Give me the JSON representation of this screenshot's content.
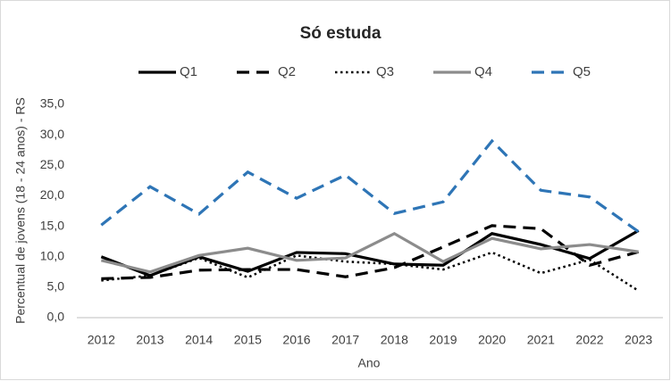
{
  "chart_data": {
    "type": "line",
    "title": "Só estuda",
    "x_label": "Ano",
    "y_label": "Percentual de jovens (18 - 24 anos) - RS",
    "categories": [
      "2012",
      "2013",
      "2014",
      "2015",
      "2016",
      "2017",
      "2018",
      "2019",
      "2020",
      "2021",
      "2022",
      "2023"
    ],
    "series": [
      {
        "name": "Q1",
        "color": "#000000",
        "style": "solid",
        "values": [
          10.0,
          6.9,
          10.0,
          7.6,
          10.7,
          10.5,
          8.8,
          8.6,
          13.8,
          12.0,
          9.7,
          14.3
        ]
      },
      {
        "name": "Q2",
        "color": "#000000",
        "style": "dash",
        "values": [
          6.4,
          6.6,
          7.8,
          7.9,
          7.9,
          6.7,
          8.2,
          11.6,
          15.1,
          14.6,
          8.6,
          10.8
        ]
      },
      {
        "name": "Q3",
        "color": "#000000",
        "style": "dot",
        "values": [
          6.1,
          6.9,
          9.8,
          6.6,
          10.2,
          9.2,
          8.8,
          7.9,
          10.7,
          7.3,
          9.5,
          4.4
        ]
      },
      {
        "name": "Q4",
        "color": "#8c8c8c",
        "style": "solid",
        "values": [
          9.4,
          7.5,
          10.2,
          11.4,
          9.4,
          9.8,
          13.8,
          9.2,
          13.0,
          11.3,
          12.0,
          10.8
        ]
      },
      {
        "name": "Q5",
        "color": "#2e75b6",
        "style": "dash",
        "values": [
          15.2,
          21.5,
          17.0,
          23.9,
          19.6,
          23.4,
          17.1,
          19.0,
          29.0,
          20.9,
          19.8,
          14.1
        ]
      }
    ],
    "ylim": [
      0,
      35
    ],
    "yticks": [
      {
        "value": 0,
        "label": "0,0"
      },
      {
        "value": 5,
        "label": "5,0"
      },
      {
        "value": 10,
        "label": "10,0"
      },
      {
        "value": 15,
        "label": "15,0"
      },
      {
        "value": 20,
        "label": "20,0"
      },
      {
        "value": 25,
        "label": "25,0"
      },
      {
        "value": 30,
        "label": "30,0"
      },
      {
        "value": 35,
        "label": "35,0"
      }
    ],
    "grid": false,
    "legend": "top"
  }
}
